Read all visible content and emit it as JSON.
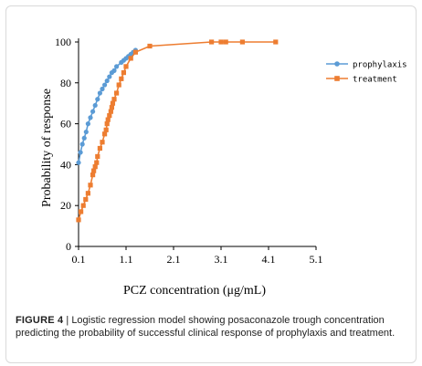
{
  "chart_data": {
    "type": "line",
    "title": "",
    "xlabel": "PCZ concentration (μg/mL)",
    "ylabel": "Probability of response",
    "xlim": [
      0.1,
      5.1
    ],
    "ylim": [
      0,
      100
    ],
    "x_ticks": [
      "0.1",
      "1.1",
      "2.1",
      "3.1",
      "4.1",
      "5.1"
    ],
    "y_ticks": [
      "0",
      "20",
      "40",
      "60",
      "80",
      "100"
    ],
    "legend_position": "right",
    "series": [
      {
        "name": "prophylaxis",
        "color": "#5b9bd5",
        "marker": "circle",
        "x": [
          0.1,
          0.14,
          0.18,
          0.22,
          0.26,
          0.3,
          0.35,
          0.4,
          0.45,
          0.5,
          0.55,
          0.6,
          0.65,
          0.7,
          0.75,
          0.8,
          0.85,
          0.9,
          1.0,
          1.05,
          1.1,
          1.15,
          1.2,
          1.25,
          1.3
        ],
        "y": [
          41,
          46,
          50,
          53,
          56,
          60,
          63,
          66,
          69,
          72,
          75,
          77,
          79,
          81,
          83,
          85,
          86,
          88,
          90,
          91,
          92,
          93,
          94,
          95,
          96
        ]
      },
      {
        "name": "treatment",
        "color": "#ed7d31",
        "marker": "square",
        "x": [
          0.1,
          0.15,
          0.2,
          0.25,
          0.3,
          0.35,
          0.4,
          0.42,
          0.45,
          0.48,
          0.5,
          0.55,
          0.6,
          0.65,
          0.68,
          0.7,
          0.72,
          0.75,
          0.78,
          0.8,
          0.82,
          0.85,
          0.9,
          0.95,
          1.0,
          1.05,
          1.1,
          1.2,
          1.3,
          1.6,
          2.9,
          3.1,
          3.2,
          3.55,
          4.25
        ],
        "y": [
          13,
          17,
          20,
          23,
          26,
          30,
          35,
          37,
          39,
          41,
          44,
          48,
          51,
          55,
          57,
          60,
          62,
          64,
          66,
          68,
          70,
          72,
          75,
          79,
          82,
          85,
          88,
          92,
          95,
          98,
          100,
          100,
          100,
          100,
          100
        ]
      }
    ]
  },
  "caption": {
    "label": "FIGURE 4",
    "text": " | Logistic regression model showing posaconazole trough concentration predicting the probability of successful clinical response of prophylaxis and treatment."
  }
}
